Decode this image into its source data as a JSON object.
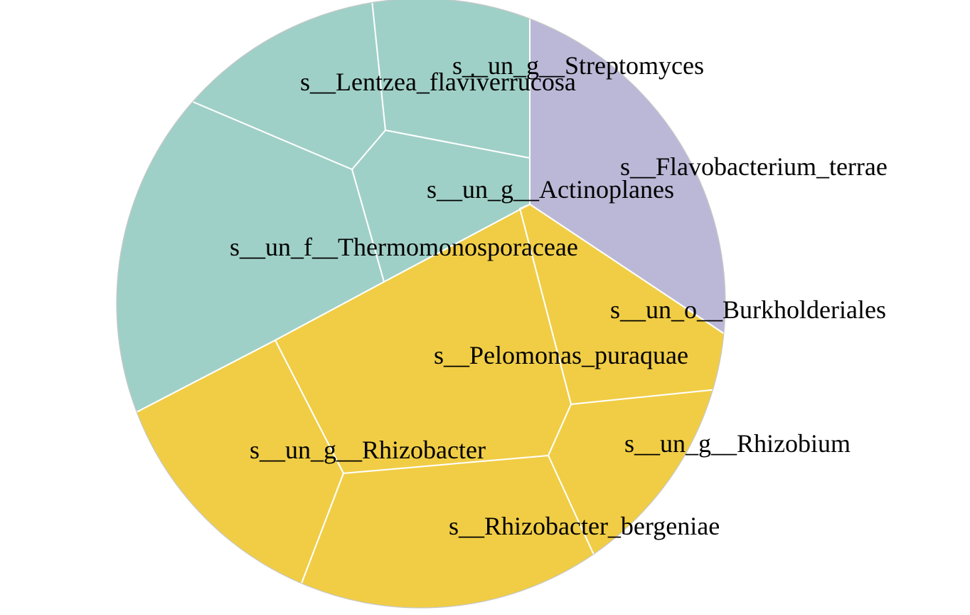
{
  "colors": {
    "group_teal": "#9fd0c7",
    "group_lavender": "#bbb8d7",
    "group_yellow": "#f0cd45",
    "cell_border": "#ffffff",
    "label_text": "#000000"
  },
  "treemap": {
    "shape": "circle",
    "groups": [
      {
        "id": "teal",
        "color_key": "group_teal"
      },
      {
        "id": "lavender",
        "color_key": "group_lavender"
      },
      {
        "id": "yellow",
        "color_key": "group_yellow"
      }
    ],
    "cells": [
      {
        "key": "lentzea",
        "group": "teal",
        "label": "s__Lentzea_flaviverrucosa"
      },
      {
        "key": "streptomyces",
        "group": "teal",
        "label": "s__un_g__Streptomyces"
      },
      {
        "key": "actinoplanes",
        "group": "teal",
        "label": "s__un_g__Actinoplanes"
      },
      {
        "key": "thermomonosporaceae",
        "group": "teal",
        "label": "s__un_f__Thermomonosporaceae"
      },
      {
        "key": "flavobacterium",
        "group": "lavender",
        "label": "s__Flavobacterium_terrae"
      },
      {
        "key": "burkholderiales",
        "group": "yellow",
        "label": "s__un_o__Burkholderiales"
      },
      {
        "key": "pelomonas",
        "group": "yellow",
        "label": "s__Pelomonas_puraquae"
      },
      {
        "key": "rhizobium",
        "group": "yellow",
        "label": "s__un_g__Rhizobium"
      },
      {
        "key": "rhizobacter",
        "group": "yellow",
        "label": "s__un_g__Rhizobacter"
      },
      {
        "key": "bergeniae",
        "group": "yellow",
        "label": "s__Rhizobacter_bergeniae"
      }
    ]
  }
}
